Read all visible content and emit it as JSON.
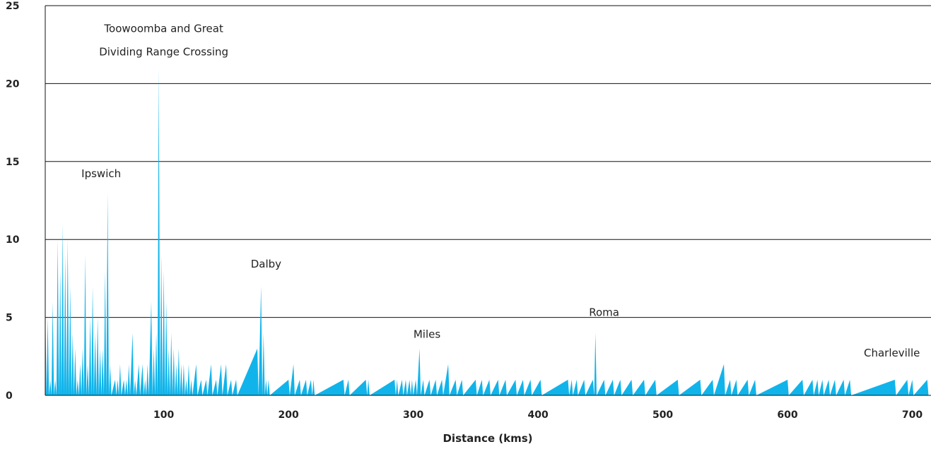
{
  "chart_data": {
    "type": "area",
    "xlabel": "Distance (kms)",
    "ylabel": "",
    "xlim": [
      5,
      715
    ],
    "ylim": [
      0,
      25
    ],
    "x_ticks": [
      100,
      200,
      300,
      400,
      500,
      600,
      700
    ],
    "y_ticks": [
      0,
      5,
      10,
      15,
      20,
      25
    ],
    "grid": true,
    "color": "#10b4ea",
    "annotations": [
      {
        "text": "Toowoomba and Great",
        "x": 100,
        "y": 23.3
      },
      {
        "text": "Dividing Range Crossing",
        "x": 100,
        "y": 21.8
      },
      {
        "text": "Ipswich",
        "x": 34,
        "y": 14
      },
      {
        "text": "Dalby",
        "x": 182,
        "y": 8.2
      },
      {
        "text": "Miles",
        "x": 311,
        "y": 3.7
      },
      {
        "text": "Roma",
        "x": 453,
        "y": 5.1
      },
      {
        "text": "Charleville",
        "x": 697,
        "y": 2.5
      }
    ],
    "series": [
      {
        "values": [
          [
            5,
            6
          ],
          [
            6,
            0
          ],
          [
            7,
            5
          ],
          [
            8,
            0
          ],
          [
            9,
            1
          ],
          [
            10,
            0
          ],
          [
            11,
            6
          ],
          [
            12,
            0
          ],
          [
            13,
            1
          ],
          [
            14,
            0
          ],
          [
            15,
            10
          ],
          [
            16,
            0
          ],
          [
            17,
            8
          ],
          [
            18,
            0
          ],
          [
            19,
            11
          ],
          [
            20,
            0
          ],
          [
            21,
            9
          ],
          [
            22,
            0
          ],
          [
            23,
            10
          ],
          [
            24,
            0
          ],
          [
            25,
            7
          ],
          [
            26,
            0
          ],
          [
            27,
            4
          ],
          [
            28,
            0
          ],
          [
            29,
            3
          ],
          [
            30,
            0
          ],
          [
            31,
            1
          ],
          [
            32,
            0
          ],
          [
            33,
            2
          ],
          [
            34,
            0
          ],
          [
            35,
            3
          ],
          [
            36,
            0
          ],
          [
            37,
            9
          ],
          [
            38,
            0
          ],
          [
            39,
            2
          ],
          [
            40,
            0
          ],
          [
            41,
            5
          ],
          [
            42,
            0
          ],
          [
            43,
            7
          ],
          [
            44,
            0
          ],
          [
            45,
            4
          ],
          [
            46,
            0
          ],
          [
            47,
            5
          ],
          [
            48,
            0
          ],
          [
            49,
            3
          ],
          [
            50,
            0
          ],
          [
            51,
            3
          ],
          [
            52,
            0
          ],
          [
            53,
            8
          ],
          [
            54,
            0
          ],
          [
            55,
            13
          ],
          [
            56,
            0
          ],
          [
            57,
            2
          ],
          [
            58,
            0
          ],
          [
            61,
            1
          ],
          [
            62,
            0
          ],
          [
            63,
            1
          ],
          [
            64,
            0
          ],
          [
            65,
            2
          ],
          [
            66,
            0
          ],
          [
            68,
            1
          ],
          [
            69,
            0
          ],
          [
            70,
            1
          ],
          [
            71,
            0
          ],
          [
            72,
            2
          ],
          [
            73,
            0
          ],
          [
            75,
            4
          ],
          [
            76,
            0
          ],
          [
            77,
            1
          ],
          [
            78,
            0
          ],
          [
            80,
            2
          ],
          [
            81,
            0
          ],
          [
            83,
            2
          ],
          [
            84,
            0
          ],
          [
            85,
            1
          ],
          [
            86,
            0
          ],
          [
            87,
            2
          ],
          [
            88,
            0
          ],
          [
            90,
            6
          ],
          [
            91,
            0
          ],
          [
            92,
            3
          ],
          [
            93,
            0
          ],
          [
            94,
            4
          ],
          [
            95,
            0
          ],
          [
            96,
            21
          ],
          [
            97,
            0
          ],
          [
            98,
            9
          ],
          [
            99,
            0
          ],
          [
            100,
            8
          ],
          [
            101,
            0
          ],
          [
            102,
            6
          ],
          [
            103,
            0
          ],
          [
            104,
            3
          ],
          [
            105,
            0
          ],
          [
            106,
            4
          ],
          [
            107,
            0
          ],
          [
            108,
            3
          ],
          [
            109,
            0
          ],
          [
            110,
            2
          ],
          [
            111,
            0
          ],
          [
            112,
            3
          ],
          [
            113,
            0
          ],
          [
            114,
            2
          ],
          [
            115,
            0
          ],
          [
            116,
            2
          ],
          [
            117,
            0
          ],
          [
            118,
            1
          ],
          [
            119,
            0
          ],
          [
            120,
            2
          ],
          [
            121,
            0
          ],
          [
            122,
            1
          ],
          [
            123,
            0
          ],
          [
            126,
            2
          ],
          [
            127,
            0
          ],
          [
            130,
            1
          ],
          [
            131,
            0
          ],
          [
            134,
            1
          ],
          [
            135,
            0
          ],
          [
            138,
            2
          ],
          [
            139,
            0
          ],
          [
            142,
            1
          ],
          [
            143,
            0
          ],
          [
            146,
            2
          ],
          [
            147,
            0
          ],
          [
            150,
            2
          ],
          [
            151,
            0
          ],
          [
            154,
            1
          ],
          [
            155,
            0
          ],
          [
            158,
            1
          ],
          [
            159,
            0
          ],
          [
            175,
            3
          ],
          [
            176,
            0
          ],
          [
            178,
            7
          ],
          [
            179,
            0
          ],
          [
            180,
            4
          ],
          [
            181,
            0
          ],
          [
            182,
            1
          ],
          [
            183,
            0
          ],
          [
            184,
            1
          ],
          [
            185,
            0
          ],
          [
            200,
            1
          ],
          [
            201,
            0
          ],
          [
            204,
            2
          ],
          [
            205,
            0
          ],
          [
            209,
            1
          ],
          [
            210,
            0
          ],
          [
            214,
            1
          ],
          [
            215,
            0
          ],
          [
            218,
            1
          ],
          [
            219,
            0
          ],
          [
            220,
            1
          ],
          [
            221,
            0
          ],
          [
            244,
            1
          ],
          [
            245,
            0
          ],
          [
            248,
            1
          ],
          [
            249,
            0
          ],
          [
            262,
            1
          ],
          [
            263,
            0
          ],
          [
            264,
            1
          ],
          [
            265,
            0
          ],
          [
            285,
            1
          ],
          [
            286,
            0
          ],
          [
            287,
            1
          ],
          [
            288,
            0
          ],
          [
            291,
            1
          ],
          [
            292,
            0
          ],
          [
            294,
            1
          ],
          [
            295,
            0
          ],
          [
            297,
            1
          ],
          [
            298,
            0
          ],
          [
            299,
            1
          ],
          [
            300,
            0
          ],
          [
            302,
            1
          ],
          [
            303,
            0
          ],
          [
            305,
            3
          ],
          [
            306,
            0
          ],
          [
            308,
            1
          ],
          [
            309,
            0
          ],
          [
            313,
            1
          ],
          [
            314,
            0
          ],
          [
            318,
            1
          ],
          [
            319,
            0
          ],
          [
            323,
            1
          ],
          [
            324,
            0
          ],
          [
            328,
            2
          ],
          [
            329,
            0
          ],
          [
            334,
            1
          ],
          [
            335,
            0
          ],
          [
            339,
            1
          ],
          [
            340,
            0
          ],
          [
            350,
            1
          ],
          [
            351,
            0
          ],
          [
            355,
            1
          ],
          [
            356,
            0
          ],
          [
            361,
            1
          ],
          [
            362,
            0
          ],
          [
            368,
            1
          ],
          [
            369,
            0
          ],
          [
            374,
            1
          ],
          [
            375,
            0
          ],
          [
            382,
            1
          ],
          [
            383,
            0
          ],
          [
            388,
            1
          ],
          [
            389,
            0
          ],
          [
            394,
            1
          ],
          [
            395,
            0
          ],
          [
            402,
            1
          ],
          [
            403,
            0
          ],
          [
            424,
            1
          ],
          [
            425,
            0
          ],
          [
            427,
            1
          ],
          [
            428,
            0
          ],
          [
            431,
            1
          ],
          [
            432,
            0
          ],
          [
            437,
            1
          ],
          [
            438,
            0
          ],
          [
            444,
            1
          ],
          [
            445,
            0
          ],
          [
            446,
            4
          ],
          [
            447,
            0
          ],
          [
            453,
            1
          ],
          [
            454,
            0
          ],
          [
            460,
            1
          ],
          [
            461,
            0
          ],
          [
            466,
            1
          ],
          [
            467,
            0
          ],
          [
            475,
            1
          ],
          [
            476,
            0
          ],
          [
            485,
            1
          ],
          [
            486,
            0
          ],
          [
            494,
            1
          ],
          [
            495,
            0
          ],
          [
            512,
            1
          ],
          [
            513,
            0
          ],
          [
            530,
            1
          ],
          [
            531,
            0
          ],
          [
            540,
            1
          ],
          [
            541,
            0
          ],
          [
            549,
            2
          ],
          [
            550,
            0
          ],
          [
            554,
            1
          ],
          [
            555,
            0
          ],
          [
            559,
            1
          ],
          [
            560,
            0
          ],
          [
            568,
            1
          ],
          [
            569,
            0
          ],
          [
            574,
            1
          ],
          [
            575,
            0
          ],
          [
            600,
            1
          ],
          [
            601,
            0
          ],
          [
            612,
            1
          ],
          [
            613,
            0
          ],
          [
            620,
            1
          ],
          [
            621,
            0
          ],
          [
            624,
            1
          ],
          [
            625,
            0
          ],
          [
            628,
            1
          ],
          [
            629,
            0
          ],
          [
            633,
            1
          ],
          [
            634,
            0
          ],
          [
            638,
            1
          ],
          [
            639,
            0
          ],
          [
            645,
            1
          ],
          [
            646,
            0
          ],
          [
            650,
            1
          ],
          [
            651,
            0
          ],
          [
            686,
            1
          ],
          [
            687,
            0
          ],
          [
            696,
            1
          ],
          [
            697,
            0
          ],
          [
            700,
            1
          ],
          [
            701,
            0
          ],
          [
            712,
            1
          ],
          [
            713,
            0
          ]
        ]
      }
    ]
  }
}
